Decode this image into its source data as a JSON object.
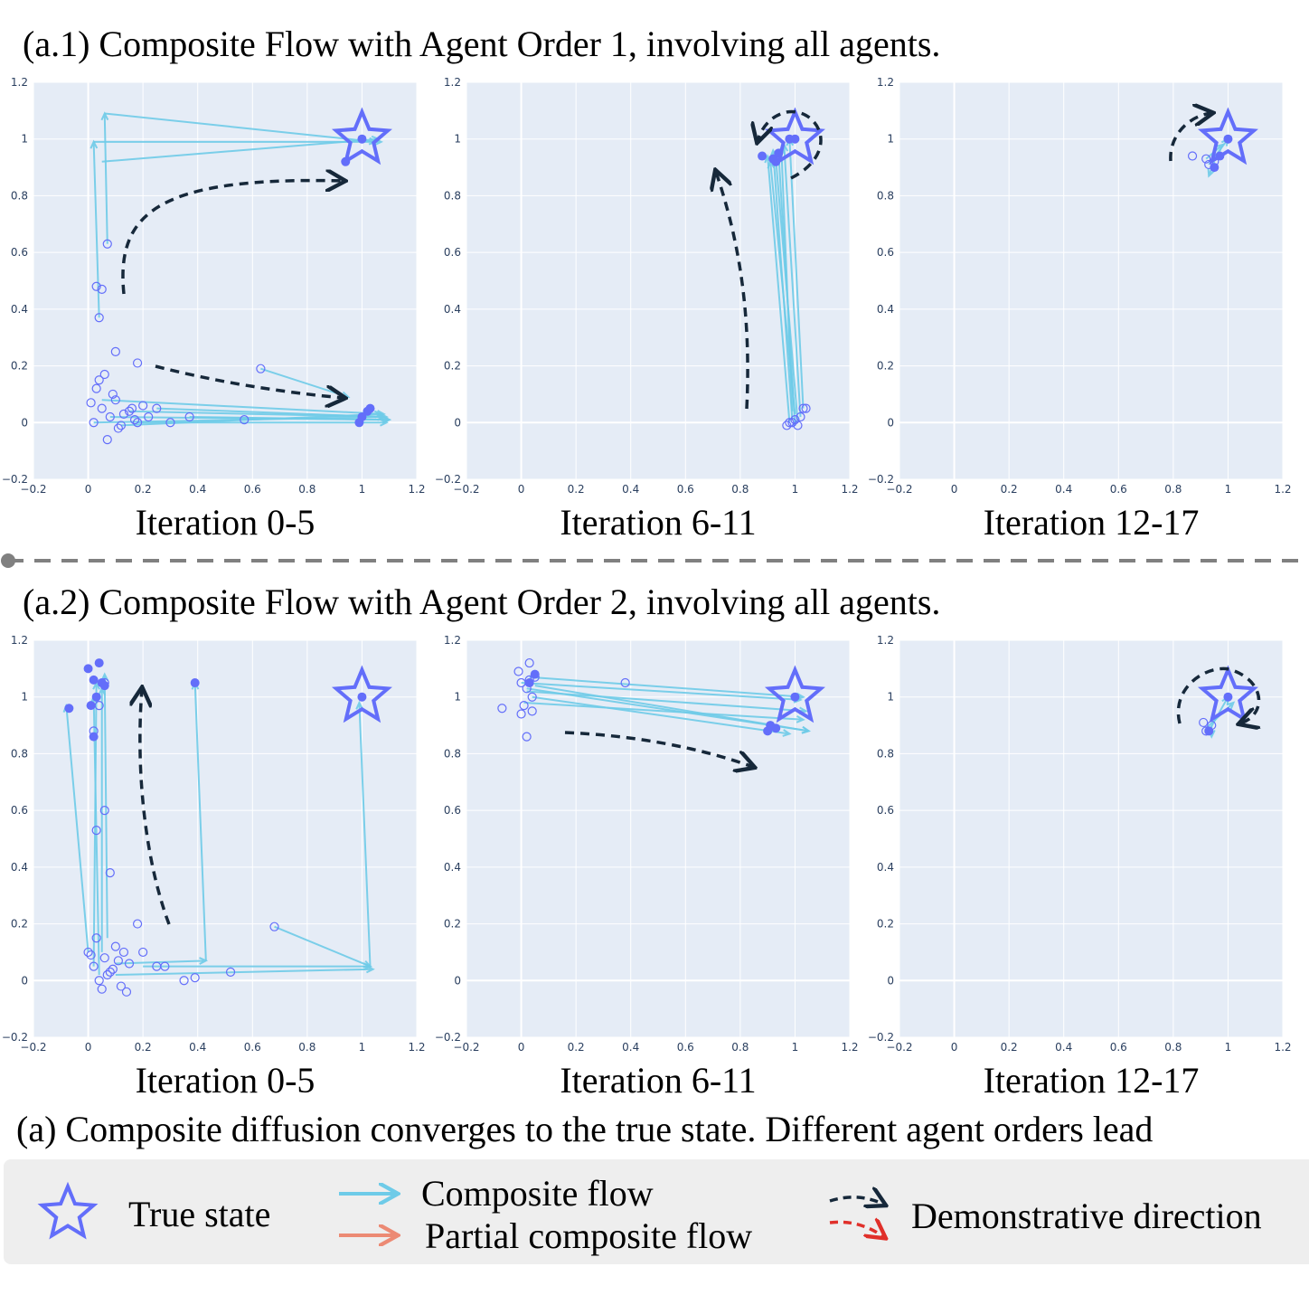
{
  "section_titles": [
    "(a.1) Composite Flow with Agent Order 1, involving all agents.",
    "(a.2) Composite Flow with Agent Order 2, involving all agents."
  ],
  "chart_data": [
    {
      "type": "flow",
      "xlabel": "Iteration 0-5",
      "xlim": [
        -0.2,
        1.2
      ],
      "ylim": [
        -0.2,
        1.2
      ],
      "xticks": [
        {
          "value": -0.2,
          "label": "−0.2"
        },
        0,
        0.2,
        0.4,
        0.6,
        0.8,
        1,
        1.2
      ],
      "yticks": [
        {
          "value": -0.2,
          "label": "−0.2"
        },
        0,
        0.2,
        0.4,
        0.6,
        0.8,
        1,
        1.2
      ],
      "true_state": {
        "x": 1,
        "y": 1
      },
      "open_points": {
        "x": [
          0.02,
          0.05,
          0.08,
          0.1,
          0.12,
          0.15,
          0.18,
          0.2,
          0.03,
          0.06,
          0.09,
          0.13,
          0.17,
          0.22,
          0.25,
          0.3,
          0.37,
          0.57,
          0.04,
          0.11,
          0.01,
          0.07,
          0.16,
          0.63,
          0.1,
          0.18,
          0.03,
          0.05,
          0.07,
          0.04
        ],
        "y": [
          0.0,
          0.05,
          0.02,
          0.08,
          -0.01,
          0.04,
          0.0,
          0.06,
          0.12,
          0.17,
          0.1,
          0.03,
          0.01,
          0.02,
          0.05,
          0.0,
          0.02,
          0.01,
          0.15,
          -0.02,
          0.07,
          -0.06,
          0.05,
          0.19,
          0.25,
          0.21,
          0.48,
          0.47,
          0.63,
          0.37
        ]
      },
      "filled_points": {
        "x": [
          1.02,
          1.03,
          0.99,
          1.0,
          0.94,
          1.0
        ],
        "y": [
          0.04,
          0.05,
          0.0,
          0.02,
          0.92,
          1.0
        ]
      },
      "flows": {
        "x0": [
          0.02,
          0.08,
          0.12,
          0.18,
          0.25,
          0.37,
          0.05,
          0.15,
          0.63,
          0.04,
          0.02,
          0.06,
          0.05,
          0.07
        ],
        "y0": [
          0.0,
          0.02,
          -0.01,
          0.0,
          0.05,
          0.02,
          0.08,
          0.04,
          0.19,
          0.37,
          0.99,
          1.09,
          0.92,
          0.63
        ],
        "x1": [
          1.08,
          1.1,
          1.07,
          1.09,
          1.08,
          1.1,
          1.08,
          1.09,
          0.95,
          0.02,
          1.07,
          1.05,
          1.06,
          0.06
        ],
        "y1": [
          0.02,
          0.01,
          0.03,
          0.0,
          0.02,
          0.01,
          0.03,
          0.02,
          0.09,
          0.99,
          0.99,
          0.99,
          1.0,
          1.09
        ]
      }
    },
    {
      "type": "flow",
      "xlabel": "Iteration 6-11",
      "xlim": [
        -0.2,
        1.2
      ],
      "ylim": [
        -0.2,
        1.2
      ],
      "xticks": [
        {
          "value": -0.2,
          "label": "−0.2"
        },
        0,
        0.2,
        0.4,
        0.6,
        0.8,
        1,
        1.2
      ],
      "yticks": [
        {
          "value": -0.2,
          "label": "−0.2"
        },
        0,
        0.2,
        0.4,
        0.6,
        0.8,
        1,
        1.2
      ],
      "true_state": {
        "x": 1,
        "y": 1
      },
      "open_points": {
        "x": [
          0.97,
          0.99,
          1.0,
          1.01,
          1.02,
          0.98,
          1.03,
          1.04
        ],
        "y": [
          -0.01,
          0.0,
          0.01,
          -0.01,
          0.02,
          0.0,
          0.05,
          0.05
        ]
      },
      "filled_points": {
        "x": [
          0.88,
          0.92,
          0.93,
          0.94,
          0.98,
          1.0
        ],
        "y": [
          0.94,
          0.93,
          0.92,
          0.95,
          1.0,
          1.0
        ]
      },
      "flows": {
        "x0": [
          0.98,
          0.99,
          1.0,
          1.01,
          1.02,
          1.03,
          1.0,
          0.99
        ],
        "y0": [
          0.0,
          0.01,
          -0.01,
          0.0,
          0.02,
          0.05,
          0.03,
          0.04
        ],
        "x1": [
          0.9,
          0.92,
          0.94,
          0.93,
          0.96,
          0.98,
          0.91,
          0.95
        ],
        "y1": [
          0.94,
          0.96,
          0.95,
          0.93,
          0.98,
          1.0,
          0.92,
          0.97
        ]
      }
    },
    {
      "type": "flow",
      "xlabel": "Iteration 12-17",
      "xlim": [
        -0.2,
        1.2
      ],
      "ylim": [
        -0.2,
        1.2
      ],
      "xticks": [
        {
          "value": -0.2,
          "label": "−0.2"
        },
        0,
        0.2,
        0.4,
        0.6,
        0.8,
        1,
        1.2
      ],
      "yticks": [
        {
          "value": -0.2,
          "label": "−0.2"
        },
        0,
        0.2,
        0.4,
        0.6,
        0.8,
        1,
        1.2
      ],
      "true_state": {
        "x": 1,
        "y": 1
      },
      "open_points": {
        "x": [
          0.87,
          0.92,
          0.93,
          0.95
        ],
        "y": [
          0.94,
          0.93,
          0.91,
          0.92
        ]
      },
      "filled_points": {
        "x": [
          0.95,
          0.97,
          1.0
        ],
        "y": [
          0.9,
          0.94,
          1.0
        ]
      },
      "flows": {
        "x0": [
          0.93,
          0.95,
          0.92
        ],
        "y0": [
          0.91,
          0.92,
          0.93
        ],
        "x1": [
          1.0,
          0.93,
          0.98
        ],
        "y1": [
          1.0,
          0.87,
          0.98
        ]
      }
    },
    {
      "type": "flow",
      "xlabel": "Iteration 0-5",
      "xlim": [
        -0.2,
        1.2
      ],
      "ylim": [
        -0.2,
        1.2
      ],
      "xticks": [
        {
          "value": -0.2,
          "label": "−0.2"
        },
        0,
        0.2,
        0.4,
        0.6,
        0.8,
        1,
        1.2
      ],
      "yticks": [
        {
          "value": -0.2,
          "label": "−0.2"
        },
        0,
        0.2,
        0.4,
        0.6,
        0.8,
        1,
        1.2
      ],
      "true_state": {
        "x": 1,
        "y": 1
      },
      "open_points": {
        "x": [
          0.0,
          0.02,
          0.04,
          0.06,
          0.08,
          0.1,
          0.12,
          0.15,
          0.03,
          0.05,
          0.07,
          0.01,
          0.09,
          0.13,
          0.68,
          0.52,
          0.35,
          0.39,
          0.28,
          0.18,
          0.08,
          0.06,
          0.03,
          0.02,
          0.04,
          0.06,
          0.11,
          0.2,
          0.25,
          0.14
        ],
        "y": [
          0.1,
          0.05,
          0.0,
          0.08,
          0.03,
          0.12,
          -0.02,
          0.06,
          0.15,
          -0.03,
          0.02,
          0.09,
          0.04,
          0.1,
          0.19,
          0.03,
          0.0,
          0.01,
          0.05,
          0.2,
          0.38,
          0.6,
          0.53,
          0.88,
          0.97,
          1.05,
          0.07,
          0.1,
          0.05,
          -0.04
        ]
      },
      "filled_points": {
        "x": [
          -0.07,
          0.39,
          0.0,
          0.02,
          0.05,
          0.03,
          0.01,
          0.04,
          0.02,
          1.0,
          0.06
        ],
        "y": [
          0.96,
          1.05,
          1.1,
          1.06,
          1.05,
          1.0,
          0.97,
          1.12,
          0.86,
          1.0,
          1.04
        ]
      },
      "flows": {
        "x0": [
          0.0,
          0.43,
          1.03,
          0.02,
          0.05,
          0.07,
          0.04,
          0.1,
          0.2,
          0.68,
          0.1
        ],
        "y0": [
          0.1,
          0.07,
          0.05,
          0.05,
          0.1,
          0.15,
          0.02,
          0.02,
          0.05,
          0.19,
          0.06
        ],
        "x1": [
          -0.08,
          0.39,
          0.99,
          0.03,
          0.05,
          0.06,
          0.02,
          1.04,
          1.03,
          1.03,
          0.43
        ],
        "y1": [
          0.97,
          1.05,
          0.98,
          1.05,
          1.03,
          1.08,
          1.0,
          0.04,
          0.05,
          0.05,
          0.07
        ]
      }
    },
    {
      "type": "flow",
      "xlabel": "Iteration 6-11",
      "xlim": [
        -0.2,
        1.2
      ],
      "ylim": [
        -0.2,
        1.2
      ],
      "xticks": [
        {
          "value": -0.2,
          "label": "−0.2"
        },
        0,
        0.2,
        0.4,
        0.6,
        0.8,
        1,
        1.2
      ],
      "yticks": [
        {
          "value": -0.2,
          "label": "−0.2"
        },
        0,
        0.2,
        0.4,
        0.6,
        0.8,
        1,
        1.2
      ],
      "true_state": {
        "x": 1,
        "y": 1
      },
      "open_points": {
        "x": [
          -0.07,
          -0.01,
          0.0,
          0.02,
          0.01,
          0.03,
          0.04,
          0.05,
          0.0,
          0.02,
          0.04,
          0.38,
          0.03
        ],
        "y": [
          0.96,
          1.09,
          1.05,
          1.03,
          0.97,
          1.12,
          1.0,
          1.07,
          0.94,
          0.86,
          0.95,
          1.05,
          1.06
        ]
      },
      "filled_points": {
        "x": [
          0.9,
          0.91,
          0.93,
          1.0,
          0.03,
          0.05
        ],
        "y": [
          0.88,
          0.9,
          0.89,
          1.0,
          1.05,
          1.08
        ]
      },
      "flows": {
        "x0": [
          0.0,
          0.02,
          0.03,
          0.05,
          0.04,
          0.01,
          0.02
        ],
        "y0": [
          1.05,
          1.03,
          1.07,
          1.04,
          1.0,
          0.98,
          1.02
        ],
        "x1": [
          1.02,
          1.05,
          1.03,
          1.05,
          0.98,
          1.03,
          1.04
        ],
        "y1": [
          0.99,
          0.88,
          1.0,
          0.88,
          0.87,
          0.92,
          0.95
        ]
      }
    },
    {
      "type": "flow",
      "xlabel": "Iteration 12-17",
      "xlim": [
        -0.2,
        1.2
      ],
      "ylim": [
        -0.2,
        1.2
      ],
      "xticks": [
        {
          "value": -0.2,
          "label": "−0.2"
        },
        0,
        0.2,
        0.4,
        0.6,
        0.8,
        1,
        1.2
      ],
      "yticks": [
        {
          "value": -0.2,
          "label": "−0.2"
        },
        0,
        0.2,
        0.4,
        0.6,
        0.8,
        1,
        1.2
      ],
      "true_state": {
        "x": 1,
        "y": 1
      },
      "open_points": {
        "x": [
          0.91,
          0.92,
          0.94
        ],
        "y": [
          0.91,
          0.88,
          0.9
        ]
      },
      "filled_points": {
        "x": [
          0.93,
          1.0
        ],
        "y": [
          0.88,
          1.0
        ]
      },
      "flows": {
        "x0": [
          0.93,
          0.94,
          0.92
        ],
        "y0": [
          0.88,
          0.9,
          0.89
        ],
        "x1": [
          1.0,
          0.94,
          1.02
        ],
        "y1": [
          1.0,
          0.86,
          0.98
        ]
      }
    }
  ],
  "caption": "(a) Composite diffusion converges to the true state. Different agent orders lead",
  "legend": {
    "true_state": "True state",
    "composite_flow": "Composite flow",
    "partial_flow": "Partial composite flow",
    "demo": "Demonstrative direction"
  }
}
